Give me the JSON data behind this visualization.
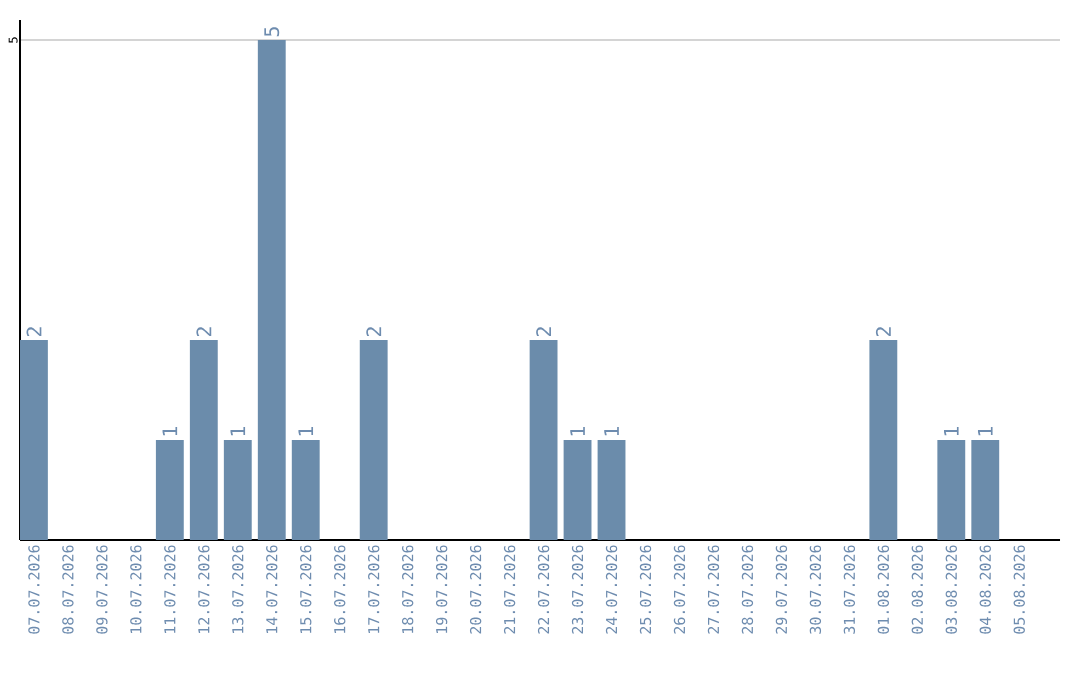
{
  "chart_data": {
    "type": "bar",
    "categories": [
      "07.07.2026",
      "08.07.2026",
      "09.07.2026",
      "10.07.2026",
      "11.07.2026",
      "12.07.2026",
      "13.07.2026",
      "14.07.2026",
      "15.07.2026",
      "16.07.2026",
      "17.07.2026",
      "18.07.2026",
      "19.07.2026",
      "20.07.2026",
      "21.07.2026",
      "22.07.2026",
      "23.07.2026",
      "24.07.2026",
      "25.07.2026",
      "26.07.2026",
      "27.07.2026",
      "28.07.2026",
      "29.07.2026",
      "30.07.2026",
      "31.07.2026",
      "01.08.2026",
      "02.08.2026",
      "03.08.2026",
      "04.08.2026",
      "05.08.2026"
    ],
    "values": [
      2,
      0,
      0,
      0,
      1,
      2,
      1,
      5,
      1,
      0,
      2,
      0,
      0,
      0,
      0,
      2,
      1,
      1,
      0,
      0,
      0,
      0,
      0,
      0,
      0,
      2,
      0,
      1,
      1,
      0
    ],
    "value_labels": [
      "2",
      null,
      null,
      null,
      "1",
      "2",
      "1",
      "5",
      "1",
      null,
      "2",
      null,
      null,
      null,
      null,
      "2",
      "1",
      "1",
      null,
      null,
      null,
      null,
      null,
      null,
      null,
      "2",
      null,
      "1",
      "1",
      null
    ],
    "color": "#6b8cab",
    "ylim": [
      0,
      5.2
    ],
    "yticks": [
      5
    ],
    "grid": "y"
  }
}
